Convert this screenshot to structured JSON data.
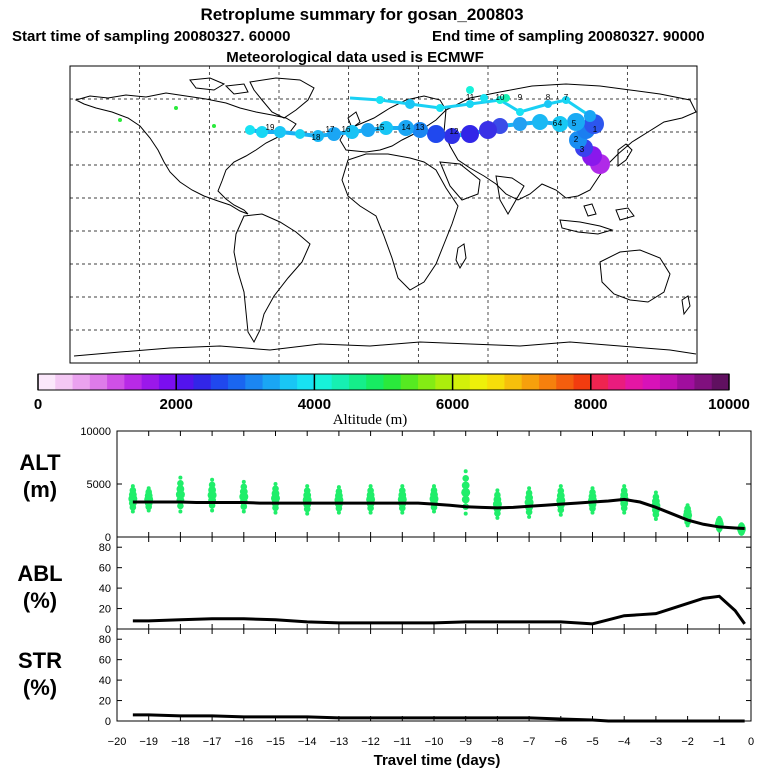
{
  "header": {
    "title": "Retroplume summary for gosan_200803",
    "line2_start": "Start time of sampling 20080327. 60000",
    "line2_end": "End time of sampling 20080327. 90000",
    "line3": "Meteorological data used is ECMWF"
  },
  "colorbar": {
    "label": "Altitude (m)",
    "tick_labels": [
      "0",
      "2000",
      "4000",
      "6000",
      "8000",
      "10000"
    ],
    "colors": [
      "#fbe8fb",
      "#f4c8f4",
      "#eaa2ef",
      "#de7be9",
      "#cf50e6",
      "#b82ae6",
      "#9b18ea",
      "#7b0ef0",
      "#5313ee",
      "#3226e8",
      "#2048ee",
      "#1a66f0",
      "#1b86f2",
      "#1aa6f4",
      "#19c6f5",
      "#18e2f3",
      "#17f2da",
      "#16f0b2",
      "#15ee8a",
      "#17ec62",
      "#2aea3c",
      "#56ea21",
      "#84ec14",
      "#acee0c",
      "#d2f00a",
      "#eef00a",
      "#f6de0a",
      "#f6c00b",
      "#f6a00c",
      "#f6800d",
      "#f45e0e",
      "#f23c0f",
      "#ee2450",
      "#ea1c7e",
      "#e416a4",
      "#d812b8",
      "#c010b2",
      "#a00e9e",
      "#80107e",
      "#601060"
    ]
  },
  "map": {
    "trajectory_labels": [
      "1",
      "2",
      "3",
      "4",
      "5",
      "6",
      "7",
      "8",
      "9",
      "10",
      "11",
      "12",
      "13",
      "14",
      "15",
      "16",
      "17",
      "18",
      "19"
    ]
  },
  "chart_data": [
    {
      "type": "line",
      "panel": "ALT",
      "ylabel": "ALT\n(m)",
      "ylabel_line1": "ALT",
      "ylabel_line2": "(m)",
      "ylim": [
        0,
        10000
      ],
      "ytick_labels": [
        "10000",
        "5000",
        "0"
      ],
      "yticks": [
        10000,
        5000,
        0
      ],
      "x": [
        -19.5,
        -19,
        -18.5,
        -18,
        -17.5,
        -17,
        -16.5,
        -16,
        -15.5,
        -15,
        -14.5,
        -14,
        -13.5,
        -13,
        -12.5,
        -12,
        -11.5,
        -11,
        -10.5,
        -10,
        -9.5,
        -9,
        -8.5,
        -8,
        -7.5,
        -7,
        -6.5,
        -6,
        -5.5,
        -5,
        -4.5,
        -4,
        -3.5,
        -3,
        -2.5,
        -2,
        -1.5,
        -1,
        -0.5,
        -0.2
      ],
      "mean": [
        3300,
        3300,
        3300,
        3300,
        3250,
        3250,
        3250,
        3250,
        3200,
        3200,
        3200,
        3200,
        3200,
        3200,
        3200,
        3200,
        3200,
        3200,
        3200,
        3100,
        3000,
        2850,
        2800,
        2750,
        2800,
        2900,
        3000,
        3100,
        3200,
        3300,
        3400,
        3550,
        3300,
        2800,
        2200,
        1600,
        1200,
        950,
        850,
        800
      ],
      "spread_color": "#20ee6a",
      "spread_x": [
        -19.5,
        -19,
        -18,
        -17,
        -16,
        -15,
        -14,
        -13,
        -12,
        -11,
        -10,
        -9,
        -8,
        -7,
        -6,
        -5,
        -4,
        -3,
        -2,
        -1,
        -0.3
      ],
      "spread_min": [
        2400,
        2500,
        2400,
        2500,
        2400,
        2300,
        2200,
        2300,
        2300,
        2300,
        2400,
        2200,
        1800,
        1900,
        2100,
        2300,
        2300,
        1700,
        1100,
        600,
        300
      ],
      "spread_max": [
        4800,
        4600,
        5600,
        5400,
        5200,
        5000,
        4800,
        4700,
        4800,
        4800,
        4800,
        6200,
        4400,
        4600,
        4800,
        4600,
        4800,
        4200,
        3000,
        1800,
        1200
      ]
    },
    {
      "type": "line",
      "panel": "ABL",
      "ylabel": "ABL\n(%)",
      "ylabel_line1": "ABL",
      "ylabel_line2": "(%)",
      "ylim": [
        0,
        90
      ],
      "ytick_labels": [
        "80",
        "60",
        "40",
        "20",
        "0"
      ],
      "yticks": [
        80,
        60,
        40,
        20,
        0
      ],
      "x": [
        -19.5,
        -19,
        -18,
        -17,
        -16,
        -15,
        -14,
        -13,
        -12,
        -11,
        -10,
        -9,
        -8,
        -7,
        -6,
        -5,
        -4.5,
        -4,
        -3.5,
        -3,
        -2.5,
        -2,
        -1.5,
        -1,
        -0.5,
        -0.2
      ],
      "values": [
        8,
        8,
        9,
        10,
        10,
        9,
        7,
        6,
        6,
        6,
        6,
        7,
        7,
        7,
        7,
        5,
        9,
        13,
        14,
        15,
        20,
        25,
        30,
        32,
        18,
        5
      ]
    },
    {
      "type": "line",
      "panel": "STR",
      "ylabel": "STR\n(%)",
      "ylabel_line1": "STR",
      "ylabel_line2": "(%)",
      "ylim": [
        0,
        90
      ],
      "ytick_labels": [
        "80",
        "60",
        "40",
        "20",
        "0"
      ],
      "yticks": [
        80,
        60,
        40,
        20,
        0
      ],
      "x": [
        -19.5,
        -19,
        -18,
        -17,
        -16,
        -15,
        -14,
        -13,
        -12,
        -11,
        -10,
        -9,
        -8,
        -7,
        -6,
        -5,
        -4.5,
        -4,
        -3,
        -2,
        -1,
        -0.2
      ],
      "values": [
        6,
        6,
        5,
        5,
        4,
        4,
        4,
        3,
        3,
        3,
        3,
        3,
        3,
        3,
        2,
        1,
        0,
        0,
        0,
        0,
        0,
        0
      ]
    }
  ],
  "xaxis": {
    "label": "Travel time (days)",
    "xlim": [
      -20,
      0
    ],
    "tick_values": [
      -20,
      -19,
      -18,
      -17,
      -16,
      -15,
      -14,
      -13,
      -12,
      -11,
      -10,
      -9,
      -8,
      -7,
      -6,
      -5,
      -4,
      -3,
      -2,
      -1,
      0
    ],
    "tick_labels": [
      "−20",
      "−19",
      "−18",
      "−17",
      "−16",
      "−15",
      "−14",
      "−13",
      "−12",
      "−11",
      "−10",
      "−9",
      "−8",
      "−7",
      "−6",
      "−5",
      "−4",
      "−3",
      "−2",
      "−1",
      "0"
    ]
  }
}
